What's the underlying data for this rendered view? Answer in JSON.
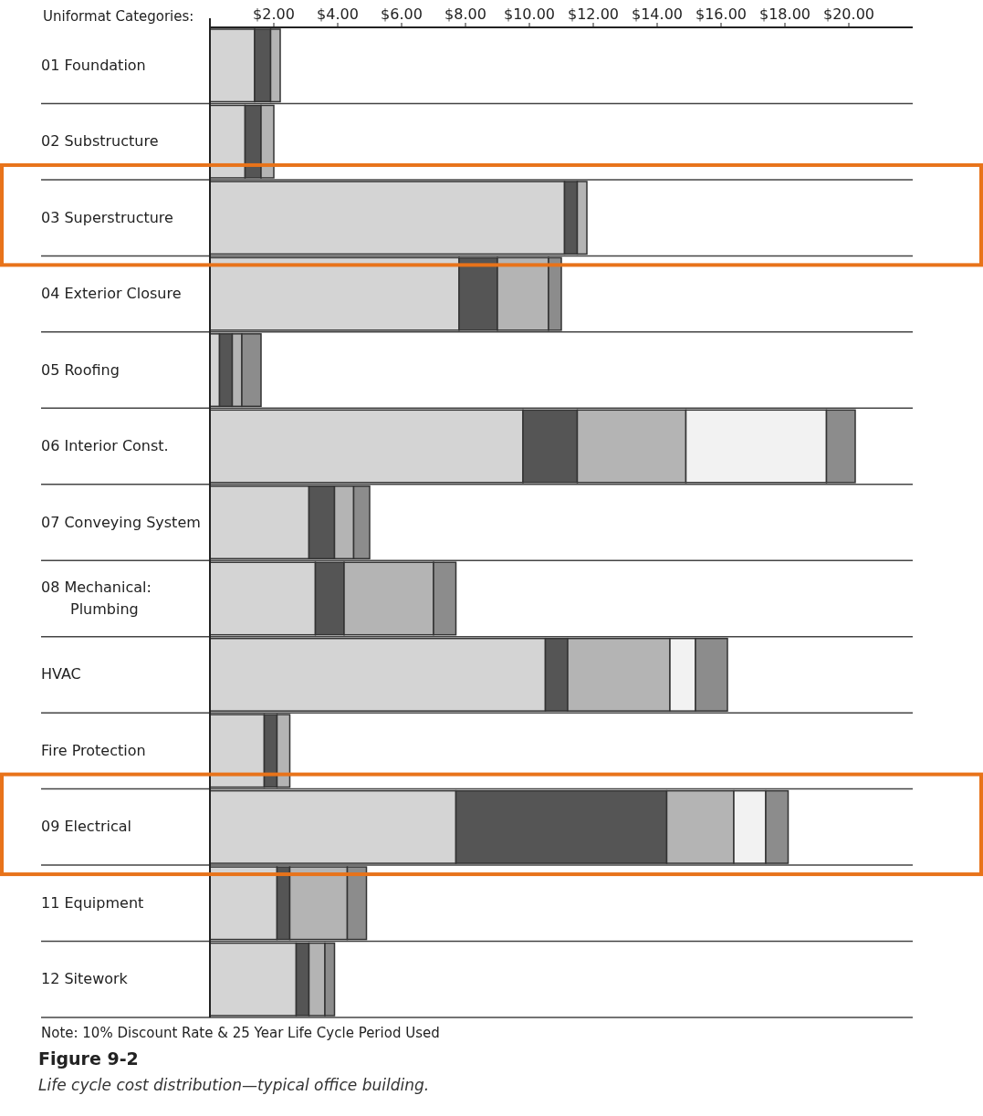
{
  "chart_data": {
    "type": "bar",
    "orientation": "horizontal",
    "stacked": true,
    "title": "Figure 9-2",
    "subtitle": "Life cycle cost distribution—typical office building.",
    "ylabel": "Uniformat Categories:",
    "annotations": [
      "Note: 10% Discount Rate & 25 Year Life Cycle Period Used"
    ],
    "categories": [
      "01 Foundation",
      "02 Substructure",
      "03 Superstructure",
      "04 Exterior Closure",
      "05 Roofing",
      "06 Interior Const.",
      "07 Conveying System",
      "08 Mechanical:\nPlumbing",
      "HVAC",
      "Fire Protection",
      "09 Electrical",
      "11 Equipment",
      "12 Sitework"
    ],
    "series": [
      {
        "color": "#d4d4d4",
        "values": [
          1.4,
          1.1,
          11.1,
          7.8,
          0.3,
          9.8,
          3.1,
          3.3,
          10.5,
          1.7,
          7.7,
          2.1,
          2.7
        ]
      },
      {
        "color": "#555555",
        "values": [
          0.5,
          0.5,
          0.4,
          1.2,
          0.4,
          1.7,
          0.8,
          0.9,
          0.7,
          0.4,
          6.6,
          0.4,
          0.4
        ]
      },
      {
        "color": "#b4b4b4",
        "values": [
          0.3,
          0.4,
          0.3,
          1.6,
          0.3,
          3.4,
          0.6,
          2.8,
          3.2,
          0.4,
          2.1,
          1.8,
          0.5
        ]
      },
      {
        "color": "#f2f2f2",
        "values": [
          null,
          null,
          null,
          null,
          null,
          4.4,
          null,
          null,
          0.8,
          null,
          1.0,
          null,
          null
        ]
      },
      {
        "color": "#8c8c8c",
        "values": [
          null,
          null,
          null,
          0.4,
          0.6,
          0.9,
          0.5,
          0.7,
          1.0,
          null,
          0.7,
          0.6,
          0.3
        ]
      }
    ],
    "xlim": [
      0,
      22
    ],
    "xticks": [
      {
        "value": 2,
        "label": "$2.00"
      },
      {
        "value": 4,
        "label": "$4.00"
      },
      {
        "value": 6,
        "label": "$6.00"
      },
      {
        "value": 8,
        "label": "$8.00"
      },
      {
        "value": 10,
        "label": "$10.00"
      },
      {
        "value": 12,
        "label": "$12.00"
      },
      {
        "value": 14,
        "label": "$14.00"
      },
      {
        "value": 16,
        "label": "$16.00"
      },
      {
        "value": 18,
        "label": "$18.00"
      },
      {
        "value": 20,
        "label": "$20.00"
      }
    ]
  }
}
